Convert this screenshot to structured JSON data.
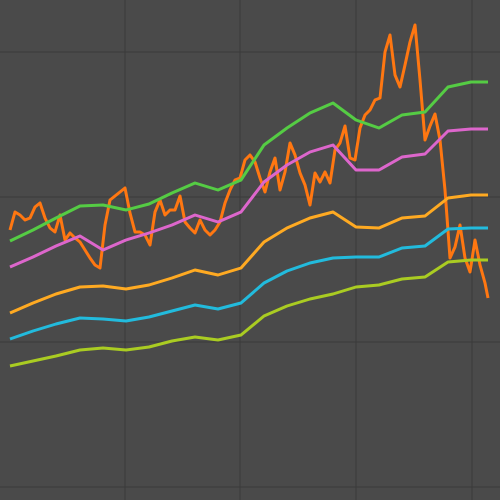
{
  "chart_data": {
    "type": "line",
    "background": "#4a4a4a",
    "grid": true,
    "grid_color": "#3a3a3a",
    "xlim": [
      0,
      500
    ],
    "ylim": [
      0,
      500
    ],
    "xticks": [
      125,
      240,
      356,
      472
    ],
    "yticks": [
      13,
      158,
      303,
      448
    ],
    "series": [
      {
        "color": "#ff7711",
        "x": [
          10,
          15,
          20,
          25,
          30,
          35,
          40,
          45,
          50,
          55,
          60,
          65,
          70,
          75,
          80,
          85,
          90,
          95,
          100,
          105,
          110,
          115,
          120,
          125,
          130,
          135,
          140,
          145,
          150,
          155,
          160,
          165,
          170,
          175,
          180,
          185,
          190,
          195,
          200,
          205,
          210,
          215,
          220,
          225,
          230,
          235,
          240,
          245,
          250,
          255,
          260,
          265,
          270,
          275,
          280,
          285,
          290,
          295,
          300,
          305,
          310,
          315,
          320,
          325,
          330,
          335,
          340,
          345,
          350,
          355,
          360,
          365,
          370,
          375,
          380,
          385,
          390,
          395,
          400,
          405,
          410,
          415,
          420,
          425,
          430,
          435,
          440,
          445,
          450,
          455,
          460,
          465,
          470,
          475,
          480,
          485,
          488
        ],
        "values": [
          270,
          288,
          285,
          280,
          282,
          293,
          297,
          282,
          272,
          268,
          285,
          260,
          267,
          262,
          258,
          250,
          242,
          235,
          232,
          275,
          300,
          304,
          308,
          312,
          287,
          268,
          268,
          265,
          255,
          288,
          300,
          285,
          290,
          290,
          304,
          278,
          272,
          267,
          280,
          270,
          265,
          270,
          278,
          297,
          310,
          320,
          322,
          340,
          345,
          338,
          322,
          308,
          328,
          342,
          310,
          328,
          357,
          345,
          327,
          315,
          295,
          327,
          318,
          328,
          317,
          350,
          357,
          374,
          342,
          340,
          372,
          385,
          390,
          400,
          402,
          448,
          465,
          425,
          413,
          435,
          458,
          475,
          420,
          360,
          374,
          386,
          360,
          310,
          242,
          253,
          275,
          242,
          228,
          260,
          235,
          217,
          202
        ]
      },
      {
        "color": "#55cc44",
        "x": [
          10,
          33,
          56,
          80,
          103,
          126,
          149,
          172,
          195,
          218,
          241,
          264,
          287,
          310,
          333,
          356,
          379,
          402,
          425,
          448,
          471,
          488
        ],
        "values": [
          259,
          270,
          282,
          294,
          295,
          290,
          296,
          307,
          317,
          310,
          320,
          355,
          372,
          387,
          397,
          380,
          372,
          385,
          388,
          413,
          418,
          418
        ]
      },
      {
        "color": "#dd66cc",
        "x": [
          10,
          33,
          56,
          80,
          103,
          126,
          149,
          172,
          195,
          218,
          241,
          264,
          287,
          310,
          333,
          356,
          379,
          402,
          425,
          448,
          471,
          488
        ],
        "values": [
          233,
          243,
          254,
          264,
          250,
          260,
          267,
          275,
          285,
          278,
          288,
          318,
          335,
          348,
          355,
          330,
          330,
          343,
          346,
          369,
          371,
          371
        ]
      },
      {
        "color": "#ffaa22",
        "x": [
          10,
          33,
          56,
          80,
          103,
          126,
          149,
          172,
          195,
          218,
          241,
          264,
          287,
          310,
          333,
          356,
          379,
          402,
          425,
          448,
          471,
          488
        ],
        "values": [
          187,
          197,
          206,
          213,
          214,
          211,
          215,
          222,
          230,
          225,
          232,
          258,
          272,
          282,
          288,
          273,
          272,
          282,
          284,
          302,
          305,
          305
        ]
      },
      {
        "color": "#22bbdd",
        "x": [
          10,
          33,
          56,
          80,
          103,
          126,
          149,
          172,
          195,
          218,
          241,
          264,
          287,
          310,
          333,
          356,
          379,
          402,
          425,
          448,
          471,
          488
        ],
        "values": [
          161,
          169,
          176,
          182,
          181,
          179,
          183,
          189,
          195,
          191,
          197,
          217,
          229,
          237,
          242,
          243,
          243,
          252,
          254,
          271,
          272,
          272
        ]
      },
      {
        "color": "#aacc22",
        "x": [
          10,
          33,
          56,
          80,
          103,
          126,
          149,
          172,
          195,
          218,
          241,
          264,
          287,
          310,
          333,
          356,
          379,
          402,
          425,
          448,
          471,
          488
        ],
        "values": [
          134,
          139,
          144,
          150,
          152,
          150,
          153,
          159,
          163,
          160,
          165,
          184,
          194,
          201,
          206,
          213,
          215,
          221,
          223,
          238,
          240,
          240
        ]
      }
    ]
  }
}
